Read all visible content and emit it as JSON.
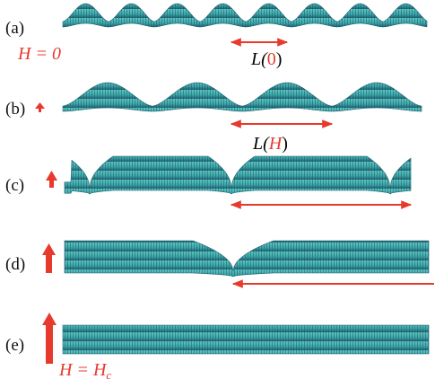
{
  "panels": [
    {
      "label": "(a)"
    },
    {
      "label": "(b)"
    },
    {
      "label": "(c)"
    },
    {
      "label": "(d)"
    },
    {
      "label": "(e)"
    }
  ],
  "annotations": {
    "h_zero": "H = 0",
    "l_zero": {
      "prefix": "L(",
      "arg": "0",
      "suffix": ")"
    },
    "l_h": {
      "prefix": "L(",
      "arg": "H",
      "suffix": ")"
    },
    "h_critical": {
      "main": "H = H",
      "subscript": "c"
    }
  }
}
